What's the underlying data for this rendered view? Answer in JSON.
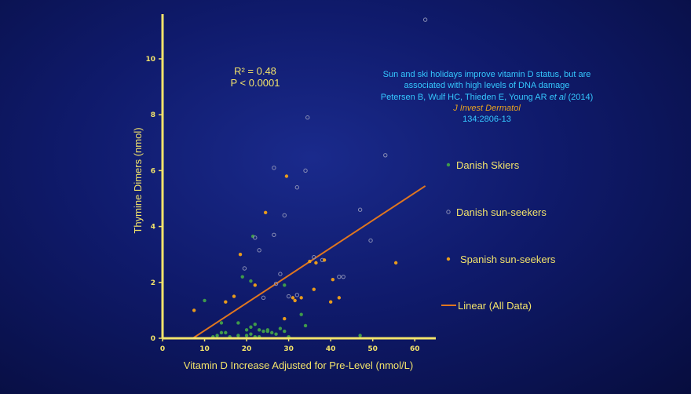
{
  "colors": {
    "axis": "#f2e36b",
    "danish_skiers": "#3f9a4a",
    "danish_sunseekers": "#8a8fb5",
    "spanish_sunseekers": "#e89b1c",
    "trendline": "#e0761f",
    "citation": "#35c8ff",
    "journal": "#e8a21f"
  },
  "annotations": {
    "r_squared": "R² = 0.48",
    "p_value": "P < 0.0001",
    "citation_line1": "Sun and ski holidays improve vitamin D status, but are",
    "citation_line2": "associated with high levels of DNA damage",
    "citation_authors": "Petersen B, Wulf HC, Thieden E, Young AR",
    "citation_etal": "et al",
    "citation_year": "(2014)",
    "journal": "J Invest Dermatol",
    "volume": "134:2806-13"
  },
  "chart_data": {
    "type": "scatter",
    "xlabel": "Vitamin D Increase Adjusted for Pre-Level (nmol/L)",
    "ylabel": "Thymine Dimers (nmol)",
    "xlim": [
      0,
      65
    ],
    "ylim": [
      0,
      11.6
    ],
    "x_ticks": [
      0,
      10,
      20,
      30,
      40,
      50,
      60
    ],
    "y_ticks": [
      0,
      2,
      4,
      6,
      8,
      10
    ],
    "legend_position": "right",
    "series": [
      {
        "name": "Danish Skiers",
        "marker": "filled",
        "points": [
          [
            10,
            1.35
          ],
          [
            12,
            0.05
          ],
          [
            13,
            0.1
          ],
          [
            14,
            0.2
          ],
          [
            14,
            0.55
          ],
          [
            15,
            0.2
          ],
          [
            16,
            0.05
          ],
          [
            18,
            0.1
          ],
          [
            20,
            0.1
          ],
          [
            20,
            0.3
          ],
          [
            21,
            0.15
          ],
          [
            21,
            0.4
          ],
          [
            22,
            0.05
          ],
          [
            22,
            0.5
          ],
          [
            23,
            0.05
          ],
          [
            23,
            0.3
          ],
          [
            24,
            0.25
          ],
          [
            25,
            0.3
          ],
          [
            26,
            0.2
          ],
          [
            27,
            0.15
          ],
          [
            28,
            0.35
          ],
          [
            29,
            0.25
          ],
          [
            30,
            0.05
          ],
          [
            33,
            0.85
          ],
          [
            47,
            0.1
          ],
          [
            21,
            2.05
          ],
          [
            21.5,
            3.65
          ],
          [
            19,
            2.2
          ],
          [
            29,
            1.9
          ],
          [
            25,
            0.25
          ],
          [
            34,
            0.45
          ],
          [
            18,
            0.55
          ]
        ]
      },
      {
        "name": "Danish sun-seekers",
        "marker": "hollow",
        "points": [
          [
            62.5,
            11.4
          ],
          [
            34.5,
            7.9
          ],
          [
            26.5,
            6.1
          ],
          [
            34,
            6.0
          ],
          [
            53,
            6.55
          ],
          [
            32,
            5.4
          ],
          [
            29,
            4.4
          ],
          [
            47,
            4.6
          ],
          [
            22,
            3.6
          ],
          [
            23,
            3.15
          ],
          [
            26.5,
            3.7
          ],
          [
            49.5,
            3.5
          ],
          [
            19.5,
            2.5
          ],
          [
            28,
            2.3
          ],
          [
            30,
            1.5
          ],
          [
            32,
            1.55
          ],
          [
            36,
            2.9
          ],
          [
            38,
            2.8
          ],
          [
            42,
            2.2
          ],
          [
            43,
            2.2
          ],
          [
            24,
            1.45
          ],
          [
            27,
            1.95
          ]
        ]
      },
      {
        "name": "Spanish sun-seekers",
        "marker": "filled",
        "points": [
          [
            7.5,
            1.0
          ],
          [
            15,
            1.3
          ],
          [
            17,
            1.5
          ],
          [
            18.5,
            3.0
          ],
          [
            22,
            1.9
          ],
          [
            24.5,
            4.5
          ],
          [
            29.5,
            5.8
          ],
          [
            31.5,
            1.35
          ],
          [
            33,
            1.45
          ],
          [
            35,
            2.75
          ],
          [
            36,
            1.75
          ],
          [
            38.5,
            2.8
          ],
          [
            40,
            1.3
          ],
          [
            40.5,
            2.1
          ],
          [
            42,
            1.45
          ],
          [
            55.5,
            2.7
          ],
          [
            29,
            0.7
          ],
          [
            31,
            1.45
          ],
          [
            36.5,
            2.7
          ]
        ]
      }
    ],
    "trendline": {
      "name": "Linear (All Data)",
      "x": [
        7.2,
        62.5
      ],
      "y": [
        0.0,
        5.45
      ]
    }
  }
}
